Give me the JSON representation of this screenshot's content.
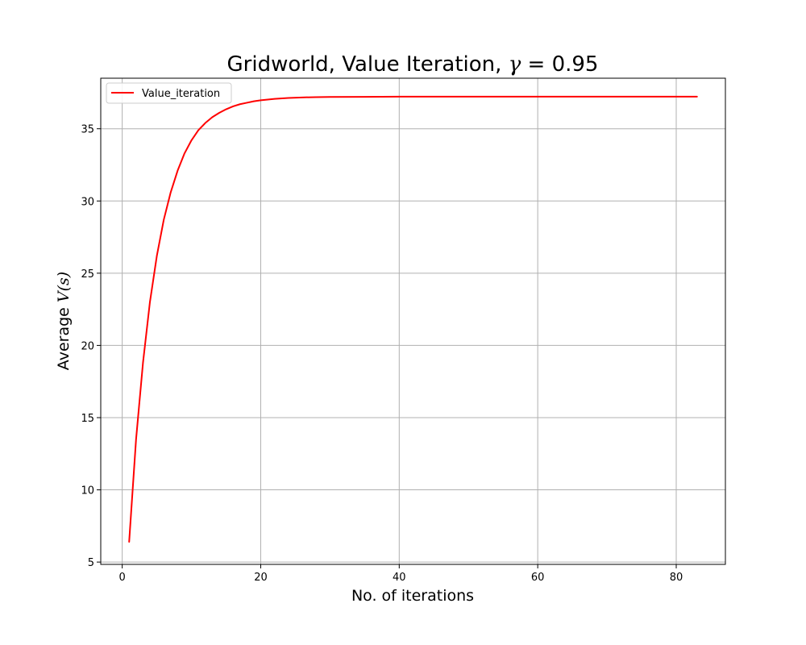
{
  "chart_data": {
    "type": "line",
    "title_text": "Gridworld, Value Iteration, ",
    "title_symbol": "γ",
    "title_value": " = 0.95",
    "xlabel": "No. of iterations",
    "ylabel_text": "Average ",
    "ylabel_symbol": "V(s)",
    "xlim": [
      -3.1,
      87.1
    ],
    "ylim": [
      4.84,
      38.5
    ],
    "xticks": [
      0,
      20,
      40,
      60,
      80
    ],
    "yticks": [
      5,
      10,
      15,
      20,
      25,
      30,
      35
    ],
    "grid": true,
    "legend_position": "top-left",
    "series": [
      {
        "name": "Value_iteration",
        "color": "#ff0000",
        "x": [
          1,
          2,
          3,
          4,
          5,
          6,
          7,
          8,
          9,
          10,
          11,
          12,
          13,
          14,
          15,
          16,
          17,
          18,
          19,
          20,
          22,
          24,
          26,
          28,
          30,
          35,
          40,
          50,
          60,
          70,
          83
        ],
        "y": [
          6.4,
          13.5,
          18.8,
          23.0,
          26.2,
          28.7,
          30.6,
          32.1,
          33.3,
          34.2,
          34.9,
          35.4,
          35.8,
          36.1,
          36.35,
          36.55,
          36.7,
          36.8,
          36.9,
          36.97,
          37.07,
          37.13,
          37.17,
          37.19,
          37.2,
          37.21,
          37.22,
          37.22,
          37.22,
          37.22,
          37.22
        ]
      }
    ]
  }
}
